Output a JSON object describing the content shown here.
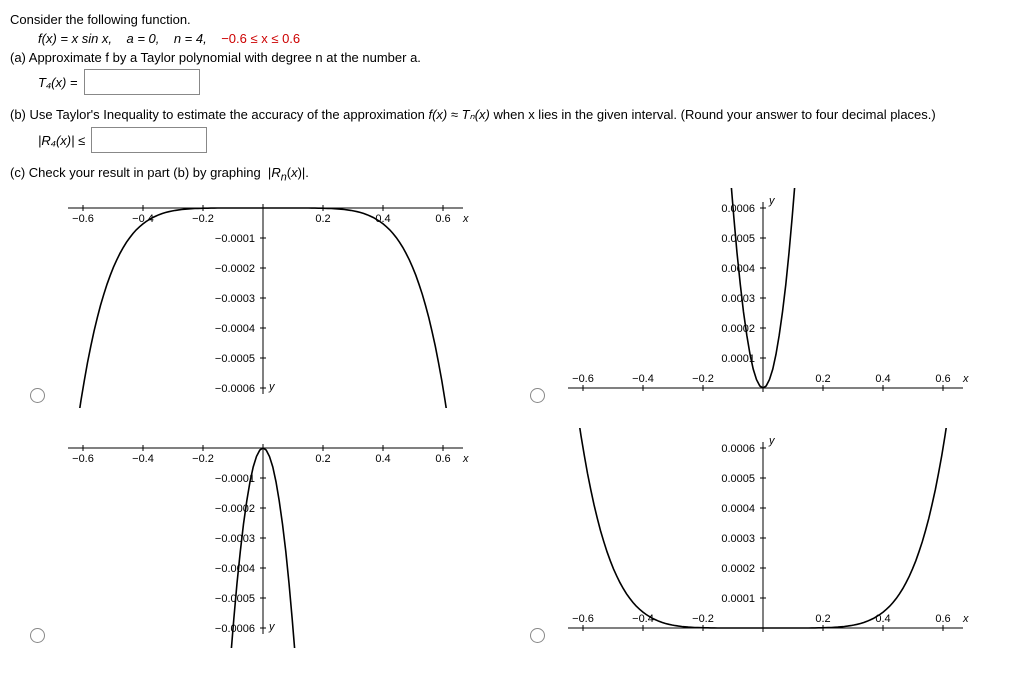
{
  "intro": "Consider the following function.",
  "funcdef": {
    "fx": "f(x) = x sin x,",
    "a": "a = 0,",
    "n": "n = 4,",
    "interval": "−0.6 ≤ x ≤ 0.6"
  },
  "part_a": {
    "prompt": "(a) Approximate f by a Taylor polynomial with degree n at the number a.",
    "lhs_html": "T₄(x) ="
  },
  "part_b": {
    "prompt_prefix": "(b) Use Taylor's Inequality to estimate the accuracy of the approximation ",
    "approx": "f(x) ≈ Tₙ(x)",
    "prompt_suffix": " when x lies in the given interval. (Round your answer to four decimal places.)",
    "lhs_html": "|R₄(x)| ≤"
  },
  "part_c": {
    "prompt": "(c) Check your result in part (b) by graphing |Rₙ(x)|."
  },
  "chart_common": {
    "x_ticks": [
      -0.6,
      -0.4,
      -0.2,
      0.2,
      0.4,
      0.6
    ],
    "y_ticks_mag": [
      0.0001,
      0.0002,
      0.0003,
      0.0004,
      0.0005,
      0.0006
    ],
    "axis_label_x": "x",
    "axis_label_y": "y",
    "curve_color": "#000000",
    "axis_color": "#000000",
    "background": "#ffffff"
  },
  "charts": [
    {
      "id": "A",
      "y_sign": -1,
      "curve": "frown_full",
      "desc": "inverted parabola-like, touching x-axis ends"
    },
    {
      "id": "B",
      "y_sign": 1,
      "curve": "cup_narrow",
      "desc": "narrow upward curve near origin"
    },
    {
      "id": "C",
      "y_sign": -1,
      "curve": "cup_narrow_down",
      "desc": "narrow downward curve near origin"
    },
    {
      "id": "D",
      "y_sign": 1,
      "curve": "bowl_full",
      "desc": "upward bowl across full width (correct |R_n|)"
    }
  ]
}
